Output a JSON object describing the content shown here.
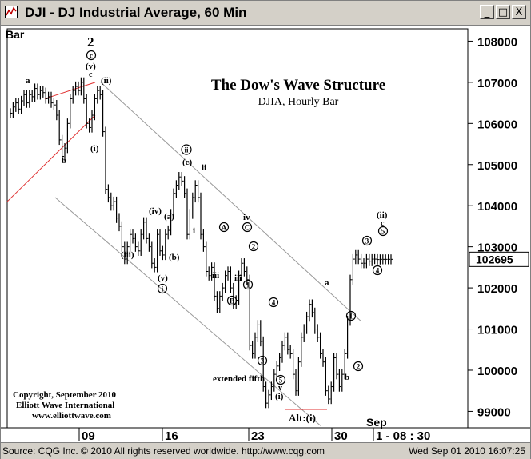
{
  "window": {
    "title": "DJI - DJ Industrial Average, 60 Min",
    "min_label": "_",
    "max_label": "□",
    "close_label": "X"
  },
  "status": {
    "left": "Source: CQG Inc. © 2010 All rights reserved worldwide.  http://www.cqg.com",
    "right": "Wed Sep 01 2010 16:07:25"
  },
  "chart_data": {
    "type": "bar",
    "title": "The Dow's Wave Structure",
    "subtitle": "DJIA, Hourly Bar",
    "bar_label": "Bar",
    "y_range": [
      98600,
      108300
    ],
    "y_ticks": [
      108000,
      107000,
      106000,
      105000,
      104000,
      103000,
      102000,
      101000,
      100000,
      99000
    ],
    "y_tick_labels": [
      "108000",
      "107000",
      "106000",
      "105000",
      "104000",
      "103000",
      "102000",
      "101000",
      "100000",
      "99000"
    ],
    "last_value": 102695,
    "last_value_label": "102695",
    "x_labels": [
      "09",
      "16",
      "23",
      "30",
      "1 - 08 : 30"
    ],
    "x_month_label": "Sep",
    "colors": {
      "bars": "#000000",
      "channel": "#999999",
      "trend": "#e03030",
      "frame": "#000000"
    },
    "copyright": [
      "Copyright, September 2010",
      "Elliott Wave International",
      "www.elliottwave.com"
    ],
    "series": [
      {
        "x": [
          0,
          1,
          2,
          3,
          4,
          5,
          6,
          7,
          8,
          9,
          10,
          11,
          12,
          13,
          14,
          15,
          16,
          17,
          18,
          19,
          20,
          21,
          22,
          23,
          24,
          25,
          26,
          27,
          28,
          29,
          30,
          31,
          32,
          33,
          34,
          35,
          36,
          37,
          38,
          39,
          40,
          41,
          42,
          43,
          44,
          45,
          46,
          47,
          48,
          49,
          50,
          51,
          52,
          53,
          54,
          55,
          56,
          57,
          58,
          59,
          60,
          61,
          62,
          63,
          64,
          65,
          66,
          67,
          68,
          69,
          70,
          71,
          72,
          73,
          74,
          75,
          76,
          77,
          78,
          79,
          80,
          81,
          82,
          83,
          84,
          85,
          86,
          87,
          88,
          89,
          90,
          91,
          92,
          93,
          94,
          95,
          96,
          97,
          98,
          99,
          100,
          101,
          102,
          103,
          104,
          105,
          106,
          107,
          108,
          109,
          110,
          111,
          112,
          113,
          114,
          115,
          116,
          117,
          118,
          119,
          120,
          121,
          122,
          123,
          124,
          125,
          126,
          127,
          128,
          129,
          130,
          131,
          132,
          133,
          134,
          135,
          136,
          137,
          138,
          139,
          140
        ],
        "values": [
          106250,
          106400,
          106500,
          106350,
          106550,
          106700,
          106500,
          106700,
          106650,
          106850,
          106700,
          106800,
          106750,
          106600,
          106650,
          106500,
          106450,
          106200,
          105600,
          105200,
          105400,
          106000,
          106600,
          106800,
          106900,
          106800,
          107000,
          106600,
          106000,
          105900,
          106200,
          106600,
          106800,
          106700,
          105800,
          104400,
          104200,
          104000,
          104100,
          103700,
          103500,
          103000,
          102700,
          103000,
          103300,
          103200,
          103000,
          102900,
          103300,
          103600,
          103200,
          103000,
          102600,
          102500,
          103300,
          102900,
          102800,
          103300,
          103400,
          103800,
          104300,
          104500,
          104700,
          104600,
          104300,
          103300,
          103800,
          104200,
          104500,
          104200,
          103300,
          103000,
          102400,
          102300,
          102500,
          101800,
          101500,
          101800,
          102000,
          102300,
          102400,
          102000,
          101600,
          101700,
          102300,
          102600,
          102400,
          102200,
          100600,
          100400,
          100800,
          101100,
          100700,
          99600,
          99200,
          99400,
          99600,
          99900,
          100100,
          100300,
          100600,
          100800,
          100500,
          100400,
          99900,
          99500,
          100200,
          100800,
          101000,
          101300,
          101600,
          101400,
          101000,
          100800,
          100400,
          100200,
          99500,
          99300,
          99600,
          100300,
          99900,
          99600,
          99900,
          100400,
          101200,
          102200,
          102700,
          102800,
          102700,
          102600,
          102600,
          102700,
          102650,
          102700,
          102700,
          102690,
          102695,
          102695,
          102695,
          102695,
          102695
        ]
      }
    ],
    "annotations": [
      "2",
      "c",
      "(v)",
      "c",
      "(ii)",
      "(i)",
      "a",
      "b",
      "(iii)",
      "(iv)",
      "(a)",
      "(b)",
      "(v)",
      "i",
      "ii",
      "(c)",
      "ii",
      "i",
      "A",
      "B",
      "iii",
      "iv",
      "C",
      "1",
      "2",
      "iii",
      "4",
      "3",
      "5",
      "v",
      "(i)",
      "extended fifth",
      "a",
      "b",
      "1",
      "2",
      "3",
      "4",
      "5",
      "(ii)",
      "c",
      "Alt:(i)"
    ]
  }
}
